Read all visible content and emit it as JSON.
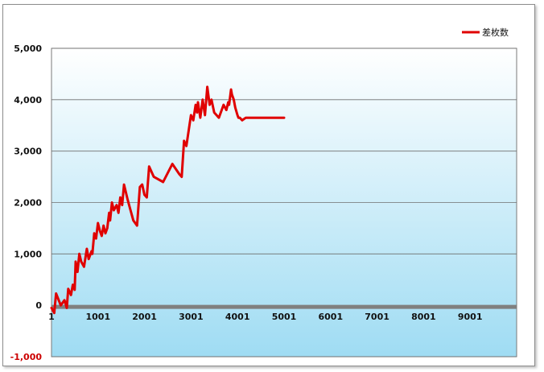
{
  "chart_data": {
    "type": "line",
    "title": "",
    "xlabel": "",
    "ylabel": "",
    "legend": {
      "position": "top-right",
      "entries": [
        "差枚数"
      ]
    },
    "xlim": [
      1,
      10001
    ],
    "ylim": [
      -1000,
      5000
    ],
    "x_ticks": [
      1,
      1001,
      2001,
      3001,
      4001,
      5001,
      6001,
      7001,
      8001,
      9001
    ],
    "x_tick_labels": [
      "1",
      "1001",
      "2001",
      "3001",
      "4001",
      "5001",
      "6001",
      "7001",
      "8001",
      "9001"
    ],
    "y_ticks": [
      -1000,
      0,
      1000,
      2000,
      3000,
      4000,
      5000
    ],
    "y_tick_labels": [
      "-1,000",
      "0",
      "1,000",
      "2,000",
      "3,000",
      "4,000",
      "5,000"
    ],
    "grid": true,
    "colors": {
      "series": "#e00000",
      "zero_line": "#808080",
      "negative_tick": "#cc0000",
      "plot_top": "#ffffff",
      "plot_bottom": "#9fdcf3"
    },
    "series": [
      {
        "name": "差枚数",
        "x": [
          1,
          60,
          100,
          200,
          280,
          330,
          360,
          420,
          460,
          500,
          520,
          560,
          600,
          640,
          700,
          760,
          800,
          860,
          880,
          920,
          960,
          1000,
          1040,
          1080,
          1120,
          1160,
          1200,
          1240,
          1260,
          1300,
          1340,
          1400,
          1440,
          1480,
          1520,
          1560,
          1600,
          1640,
          1700,
          1760,
          1800,
          1840,
          1900,
          1950,
          2000,
          2050,
          2100,
          2200,
          2400,
          2600,
          2750,
          2800,
          2850,
          2900,
          3000,
          3050,
          3100,
          3130,
          3150,
          3200,
          3250,
          3300,
          3350,
          3400,
          3440,
          3500,
          3550,
          3600,
          3700,
          3760,
          3800,
          3820,
          3860,
          3880,
          3920,
          3950,
          4000,
          4020,
          4050,
          4100,
          4180,
          4200,
          4250,
          4300,
          4400,
          4450,
          4500,
          4520,
          4560,
          4620,
          4700,
          4730,
          4760,
          4800,
          4860,
          4900,
          4960,
          5001
        ],
        "values": [
          -50,
          -150,
          230,
          0,
          100,
          -50,
          320,
          200,
          400,
          300,
          850,
          650,
          1000,
          850,
          750,
          1100,
          900,
          1050,
          1000,
          1400,
          1300,
          1600,
          1450,
          1350,
          1550,
          1400,
          1500,
          1800,
          1650,
          2000,
          1850,
          1950,
          1800,
          2100,
          1950,
          2350,
          2200,
          2050,
          1850,
          1650,
          1600,
          1550,
          2300,
          2350,
          2150,
          2100,
          2700,
          2500,
          2400,
          2750,
          2550,
          2500,
          3200,
          3100,
          3700,
          3600,
          3900,
          3750,
          3950,
          3650,
          4000,
          3700,
          4250,
          3900,
          4000,
          3750,
          3700,
          3650,
          3900,
          3800,
          3950,
          3900,
          4200,
          4100,
          4000,
          3850,
          3700,
          3650,
          3650,
          3600,
          3650,
          3650,
          3650,
          3650,
          3650,
          3650,
          3650,
          3650,
          3650,
          3650,
          3650,
          3650,
          3650,
          3650,
          3650,
          3650,
          3650,
          3650
        ]
      }
    ]
  }
}
